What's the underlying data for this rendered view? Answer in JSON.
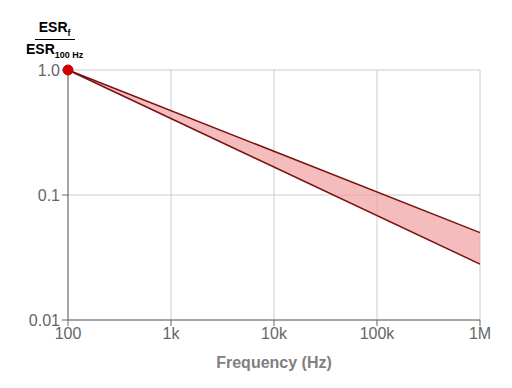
{
  "chart_data": {
    "type": "line",
    "xlabel": "Frequency (Hz)",
    "ylabel": {
      "numerator": "ESR",
      "numerator_sub": "f",
      "denominator": "ESR",
      "denominator_sub": "100 Hz"
    },
    "log": true,
    "grid": true,
    "x": [
      100,
      1000000
    ],
    "xlim": [
      100,
      1000000
    ],
    "ylim": [
      0.01,
      1.0
    ],
    "xticks": [
      100,
      {
        "value": 1000,
        "label": "1k"
      },
      {
        "value": 10000,
        "label": "10k"
      },
      {
        "value": 100000,
        "label": "100k"
      },
      {
        "value": 1000000,
        "label": "1M"
      }
    ],
    "yticks": [
      0.01,
      0.1,
      {
        "value": 1.0,
        "label": "1.0"
      }
    ],
    "series": [
      {
        "type": "line",
        "color": "#7a1010",
        "values": [
          1.0,
          0.05
        ]
      },
      {
        "type": "line",
        "color": "#7a1010",
        "values": [
          1.0,
          0.028
        ]
      },
      {
        "type": "scatter",
        "marker": "circle",
        "color": "#cc0000",
        "values": [
          1.0,
          null
        ]
      }
    ],
    "fill_between": {
      "color": "#f0a0a0"
    }
  }
}
